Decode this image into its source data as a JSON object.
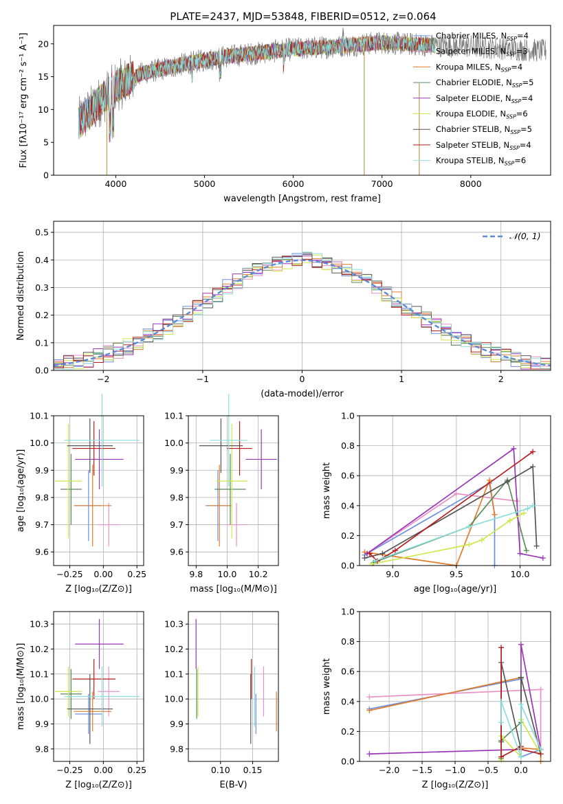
{
  "figure_title": "PLATE=2437, MJD=53848, FIBERID=0512, z=0.064",
  "legend_models": [
    {
      "label": "Chabrier MILES, N",
      "sub": "SSP",
      "count": "=4",
      "color": "#6a8fdd"
    },
    {
      "label": "Salpeter MILES, N",
      "sub": "SSP",
      "count": "=3",
      "color": "#ea8fc4"
    },
    {
      "label": "Kroupa MILES, N",
      "sub": "SSP",
      "count": "=4",
      "color": "#e27b2a"
    },
    {
      "label": "Chabrier ELODIE, N",
      "sub": "SSP",
      "count": "=5",
      "color": "#5a8a5a"
    },
    {
      "label": "Salpeter ELODIE, N",
      "sub": "SSP",
      "count": "=4",
      "color": "#9a35b8"
    },
    {
      "label": "Kroupa ELODIE, N",
      "sub": "SSP",
      "count": "=6",
      "color": "#cde84a"
    },
    {
      "label": "Chabrier STELIB, N",
      "sub": "SSP",
      "count": "=5",
      "color": "#555555"
    },
    {
      "label": "Salpeter STELIB, N",
      "sub": "SSP",
      "count": "=4",
      "color": "#b51c1c"
    },
    {
      "label": "Kroupa STELIB, N",
      "sub": "SSP",
      "count": "=6",
      "color": "#8adedd"
    }
  ],
  "chart_data": [
    {
      "id": "spectrum",
      "type": "line",
      "xlabel": "wavelength [Angstrom, rest frame]",
      "ylabel": "Flux [fλ10⁻¹⁷ erg cm⁻² s⁻¹ A⁻¹]",
      "xlim": [
        3300,
        8900
      ],
      "ylim": [
        0,
        22.8
      ],
      "xticks": [
        4000,
        5000,
        6000,
        7000,
        8000
      ],
      "yticks": [
        0,
        5,
        10,
        15,
        20
      ],
      "grid": false,
      "continuum": {
        "x": [
          3580,
          4000,
          4300,
          4800,
          5200,
          5600,
          6000,
          6500,
          7000,
          7500,
          8000,
          8400,
          8850
        ],
        "y": [
          8.0,
          13.5,
          15.5,
          17.0,
          18.0,
          18.6,
          19.2,
          19.6,
          20.2,
          19.8,
          19.6,
          19.3,
          18.9
        ]
      },
      "spikes": [
        {
          "x": 3900,
          "ymin": 0,
          "ymax": 10
        },
        {
          "x": 6800,
          "ymin": 0,
          "ymax": 20
        },
        {
          "x": 7420,
          "ymin": 0,
          "ymax": 14
        }
      ]
    },
    {
      "id": "residuals",
      "type": "line",
      "xlabel": "(data-model)/error",
      "ylabel": "Normed distribution",
      "xlim": [
        -2.5,
        2.5
      ],
      "ylim": [
        0,
        0.54
      ],
      "xticks": [
        -2,
        -1,
        0,
        1,
        2
      ],
      "xtick_labels": [
        "−2",
        "−1",
        "0",
        "1",
        "2"
      ],
      "yticks": [
        0.0,
        0.1,
        0.2,
        0.3,
        0.4,
        0.5
      ],
      "ytick_labels": [
        "0.0",
        "0.1",
        "0.2",
        "0.3",
        "0.4",
        "0.5"
      ],
      "grid": true,
      "legend": "top-right",
      "gaussian_label": "𝒩(0, 1)",
      "gaussian_color": "#5b8ad8",
      "bin_width": 0.1
    },
    {
      "id": "age-vs-z",
      "type": "scatter",
      "xlabel": "Z [log₁₀(Z/Z⊙)]",
      "ylabel": "age  [log₁₀(age/yr)]",
      "xlim": [
        -0.37,
        0.3
      ],
      "ylim": [
        9.55,
        10.1
      ],
      "xticks": [
        -0.25,
        0.0,
        0.25
      ],
      "xtick_labels": [
        "−0.25",
        "0.00",
        "0.25"
      ],
      "yticks": [
        9.6,
        9.7,
        9.8,
        9.9,
        10.0,
        10.1
      ],
      "ytick_labels": [
        "9.6",
        "9.7",
        "9.8",
        "9.9",
        "10.0",
        "10.1"
      ],
      "grid": true,
      "points": [
        {
          "x": -0.11,
          "xerr": 0.1,
          "y": 9.77,
          "yerr": 0.13
        },
        {
          "x": 0.04,
          "xerr": 0.08,
          "y": 9.7,
          "yerr": 0.08
        },
        {
          "x": -0.08,
          "xerr": 0.14,
          "y": 9.77,
          "yerr": 0.15
        },
        {
          "x": -0.24,
          "xerr": 0.08,
          "y": 9.83,
          "yerr": 0.13
        },
        {
          "x": -0.03,
          "xerr": 0.18,
          "y": 9.94,
          "yerr": 0.11
        },
        {
          "x": -0.26,
          "xerr": 0.1,
          "y": 9.86,
          "yerr": 0.21
        },
        {
          "x": -0.1,
          "xerr": 0.17,
          "y": 9.99,
          "yerr": 0.1
        },
        {
          "x": -0.07,
          "xerr": 0.16,
          "y": 9.98,
          "yerr": 0.1
        },
        {
          "x": -0.01,
          "xerr": 0.28,
          "y": 10.01,
          "yerr": 0.17
        }
      ]
    },
    {
      "id": "age-vs-mass",
      "type": "scatter",
      "xlabel": "mass [log₁₀(M/M⊙)]",
      "ylabel": "",
      "xlim": [
        9.75,
        10.33
      ],
      "ylim": [
        9.55,
        10.1
      ],
      "xticks": [
        9.8,
        10.0,
        10.2
      ],
      "xtick_labels": [
        "9.8",
        "10.0",
        "10.2"
      ],
      "yticks": [
        9.6,
        9.7,
        9.8,
        9.9,
        10.0,
        10.1
      ],
      "ytick_labels": [
        "9.6",
        "9.7",
        "9.8",
        "9.9",
        "10.0",
        "10.1"
      ],
      "grid": true,
      "points": [
        {
          "x": 9.94,
          "xerr": 0.08,
          "y": 9.77,
          "yerr": 0.13
        },
        {
          "x": 10.06,
          "xerr": 0.07,
          "y": 9.7,
          "yerr": 0.08
        },
        {
          "x": 9.95,
          "xerr": 0.08,
          "y": 9.77,
          "yerr": 0.15
        },
        {
          "x": 10.02,
          "xerr": 0.1,
          "y": 9.83,
          "yerr": 0.13
        },
        {
          "x": 10.22,
          "xerr": 0.1,
          "y": 9.94,
          "yerr": 0.11
        },
        {
          "x": 10.03,
          "xerr": 0.1,
          "y": 9.86,
          "yerr": 0.21
        },
        {
          "x": 9.96,
          "xerr": 0.14,
          "y": 9.99,
          "yerr": 0.1
        },
        {
          "x": 10.08,
          "xerr": 0.08,
          "y": 9.98,
          "yerr": 0.1
        },
        {
          "x": 10.01,
          "xerr": 0.12,
          "y": 10.01,
          "yerr": 0.17
        }
      ]
    },
    {
      "id": "weight-vs-age",
      "type": "line",
      "xlabel": "age  [log₁₀(age/yr)]",
      "ylabel": "mass weight",
      "xlim": [
        8.74,
        10.24
      ],
      "ylim": [
        0,
        1
      ],
      "xticks": [
        9.0,
        9.5,
        10.0
      ],
      "xtick_labels": [
        "9.0",
        "9.5",
        "10.0"
      ],
      "yticks": [
        0.0,
        0.2,
        0.4,
        0.6,
        0.8,
        1.0
      ],
      "ytick_labels": [
        "0.0",
        "0.2",
        "0.4",
        "0.6",
        "0.8",
        "1.0"
      ],
      "grid": true,
      "series": [
        {
          "x": [
            8.78,
            9.76,
            9.8,
            9.8
          ],
          "y": [
            0.07,
            0.55,
            0.34,
            0.0
          ]
        },
        {
          "x": [
            8.8,
            9.5,
            9.98
          ],
          "y": [
            0.08,
            0.48,
            0.43
          ]
        },
        {
          "x": [
            8.78,
            9.5,
            9.76,
            9.8
          ],
          "y": [
            0.09,
            0.0,
            0.57,
            0.34
          ]
        },
        {
          "x": [
            8.85,
            9.6,
            9.9,
            10.05
          ],
          "y": [
            0.02,
            0.26,
            0.57,
            0.1
          ]
        },
        {
          "x": [
            8.8,
            9.95,
            10.0,
            10.18
          ],
          "y": [
            0.08,
            0.78,
            0.08,
            0.05
          ]
        },
        {
          "x": [
            8.84,
            9.6,
            9.7,
            9.92,
            10.03
          ],
          "y": [
            0.01,
            0.14,
            0.17,
            0.3,
            0.35
          ]
        },
        {
          "x": [
            8.78,
            8.92,
            9.9,
            10.1,
            10.13
          ],
          "y": [
            0.05,
            0.08,
            0.56,
            0.66,
            0.13
          ]
        },
        {
          "x": [
            8.82,
            8.88,
            9.02,
            10.1
          ],
          "y": [
            0.08,
            0.03,
            0.1,
            0.76
          ]
        },
        {
          "x": [
            8.86,
            9.6,
            10.06,
            10.1
          ],
          "y": [
            0.03,
            0.26,
            0.38,
            0.4
          ]
        }
      ]
    },
    {
      "id": "mass-vs-z",
      "type": "scatter",
      "xlabel": "Z [log₁₀(Z/Z⊙)]",
      "ylabel": "mass [log₁₀(M/M⊙)]",
      "xlim": [
        -0.37,
        0.3
      ],
      "ylim": [
        9.75,
        10.35
      ],
      "xticks": [
        -0.25,
        0.0,
        0.25
      ],
      "xtick_labels": [
        "−0.25",
        "0.00",
        "0.25"
      ],
      "yticks": [
        9.8,
        9.9,
        10.0,
        10.1,
        10.2,
        10.3
      ],
      "ytick_labels": [
        "9.8",
        "9.9",
        "10.0",
        "10.1",
        "10.2",
        "10.3"
      ],
      "grid": true,
      "points": [
        {
          "x": -0.11,
          "xerr": 0.1,
          "y": 9.94,
          "yerr": 0.08
        },
        {
          "x": 0.04,
          "xerr": 0.08,
          "y": 10.03,
          "yerr": 0.1
        },
        {
          "x": -0.08,
          "xerr": 0.14,
          "y": 9.95,
          "yerr": 0.08
        },
        {
          "x": -0.24,
          "xerr": 0.08,
          "y": 10.02,
          "yerr": 0.1
        },
        {
          "x": -0.03,
          "xerr": 0.18,
          "y": 10.22,
          "yerr": 0.1
        },
        {
          "x": -0.26,
          "xerr": 0.1,
          "y": 10.03,
          "yerr": 0.1
        },
        {
          "x": -0.1,
          "xerr": 0.17,
          "y": 9.96,
          "yerr": 0.14
        },
        {
          "x": -0.07,
          "xerr": 0.16,
          "y": 10.08,
          "yerr": 0.08
        },
        {
          "x": -0.01,
          "xerr": 0.28,
          "y": 10.01,
          "yerr": 0.12
        }
      ]
    },
    {
      "id": "mass-vs-ebv",
      "type": "scatter",
      "xlabel": "E(B-V)",
      "ylabel": "",
      "xlim": [
        0.05,
        0.19
      ],
      "ylim": [
        9.75,
        10.35
      ],
      "xticks": [
        0.1,
        0.15
      ],
      "xtick_labels": [
        "0.10",
        "0.15"
      ],
      "yticks": [
        9.8,
        9.9,
        10.0,
        10.1,
        10.2,
        10.3
      ],
      "ytick_labels": [
        "9.8",
        "9.9",
        "10.0",
        "10.1",
        "10.2",
        "10.3"
      ],
      "grid": true,
      "points": [
        {
          "x": 0.155,
          "xerr": 0,
          "y": 9.94,
          "yerr": 0.08
        },
        {
          "x": 0.167,
          "xerr": 0,
          "y": 10.03,
          "yerr": 0.1
        },
        {
          "x": 0.187,
          "xerr": 0,
          "y": 9.95,
          "yerr": 0.08
        },
        {
          "x": 0.063,
          "xerr": 0,
          "y": 10.02,
          "yerr": 0.1
        },
        {
          "x": 0.062,
          "xerr": 0,
          "y": 10.22,
          "yerr": 0.1
        },
        {
          "x": 0.065,
          "xerr": 0,
          "y": 10.03,
          "yerr": 0.1
        },
        {
          "x": 0.147,
          "xerr": 0,
          "y": 9.96,
          "yerr": 0.14
        },
        {
          "x": 0.148,
          "xerr": 0,
          "y": 10.08,
          "yerr": 0.08
        },
        {
          "x": 0.153,
          "xerr": 0,
          "y": 10.01,
          "yerr": 0.12
        }
      ]
    },
    {
      "id": "weight-vs-z",
      "type": "line",
      "xlabel": "Z [log₁₀(Z/Z⊙)]",
      "ylabel": "mass weight",
      "xlim": [
        -2.45,
        0.45
      ],
      "ylim": [
        0,
        1
      ],
      "xticks": [
        -2.0,
        -1.5,
        -1.0,
        -0.5,
        0.0
      ],
      "xtick_labels": [
        "−2.0",
        "−1.5",
        "−1.0",
        "−0.5",
        "0.0"
      ],
      "yticks": [
        0.0,
        0.2,
        0.4,
        0.6,
        0.8,
        1.0
      ],
      "ytick_labels": [
        "0.0",
        "0.2",
        "0.4",
        "0.6",
        "0.8",
        "1.0"
      ],
      "grid": true,
      "series": [
        {
          "x": [
            -2.3,
            0.0,
            0.0,
            0.3
          ],
          "y": [
            0.35,
            0.55,
            0.03,
            0.08
          ]
        },
        {
          "x": [
            -2.3,
            0.3,
            0.3
          ],
          "y": [
            0.43,
            0.48,
            0.08
          ]
        },
        {
          "x": [
            -2.3,
            0.0,
            0.0,
            0.3,
            0.3
          ],
          "y": [
            0.34,
            0.56,
            0.09,
            0.08,
            0.0
          ]
        },
        {
          "x": [
            -0.3,
            -0.3,
            0.0,
            0.0
          ],
          "y": [
            0.02,
            0.14,
            0.26,
            0.56
          ]
        },
        {
          "x": [
            -2.3,
            0.0,
            0.0,
            0.3
          ],
          "y": [
            0.05,
            0.08,
            0.78,
            0.08
          ]
        },
        {
          "x": [
            -0.3,
            -0.3,
            0.0,
            0.0,
            0.3
          ],
          "y": [
            0.01,
            0.17,
            0.03,
            0.28,
            0.05
          ]
        },
        {
          "x": [
            -0.3,
            -0.3,
            0.0,
            0.0,
            0.3
          ],
          "y": [
            0.13,
            0.66,
            0.08,
            0.56,
            0.05
          ]
        },
        {
          "x": [
            -0.3,
            -0.3,
            0.0,
            0.0,
            0.3
          ],
          "y": [
            0.76,
            0.03,
            0.1,
            0.08,
            0.05
          ]
        },
        {
          "x": [
            -0.3,
            -0.3,
            0.0,
            0.0,
            0.3
          ],
          "y": [
            0.26,
            0.4,
            0.03,
            0.38,
            0.08
          ]
        }
      ]
    }
  ]
}
